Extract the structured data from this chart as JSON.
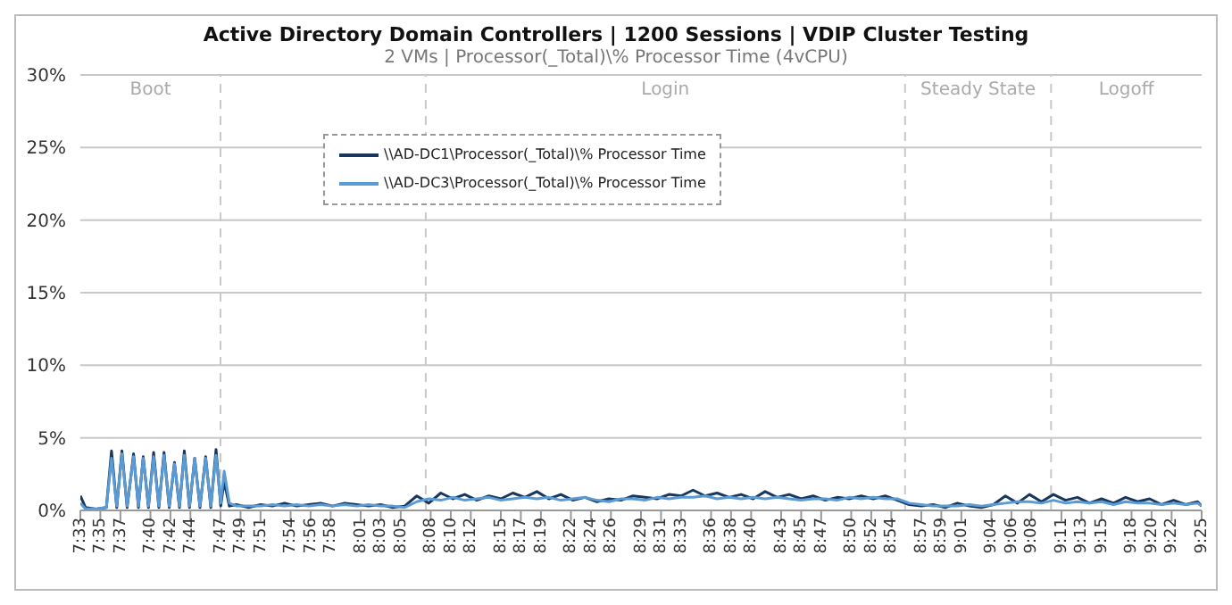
{
  "chart_data": {
    "type": "line",
    "title": "Active Directory Domain Controllers | 1200 Sessions | VDIP Cluster Testing",
    "subtitle": "2 VMs | Processor(_Total)\\% Processor Time (4vCPU)",
    "x": [
      7.55,
      7.5587,
      7.576,
      7.5933,
      7.6019,
      7.6106,
      7.6192,
      7.6279,
      7.6386,
      7.6467,
      7.6547,
      7.6634,
      7.672,
      7.6807,
      7.6893,
      7.698,
      7.7067,
      7.715,
      7.7231,
      7.7317,
      7.7404,
      7.7491,
      7.7586,
      7.7672,
      7.7759,
      7.7837,
      7.7894,
      7.7981,
      7.81,
      7.83,
      7.85,
      7.87,
      7.89,
      7.91,
      7.93,
      7.95,
      7.97,
      7.99,
      8.01,
      8.03,
      8.05,
      8.07,
      8.09,
      8.11,
      8.13,
      8.15,
      8.17,
      8.19,
      8.21,
      8.23,
      8.25,
      8.27,
      8.29,
      8.31,
      8.33,
      8.35,
      8.37,
      8.39,
      8.41,
      8.43,
      8.45,
      8.47,
      8.49,
      8.51,
      8.53,
      8.55,
      8.57,
      8.59,
      8.61,
      8.63,
      8.65,
      8.67,
      8.69,
      8.71,
      8.73,
      8.75,
      8.77,
      8.79,
      8.81,
      8.83,
      8.85,
      8.87,
      8.89,
      8.91,
      8.93,
      8.95,
      8.97,
      8.99,
      9.01,
      9.03,
      9.05,
      9.07,
      9.09,
      9.11,
      9.13,
      9.15,
      9.17,
      9.19,
      9.21,
      9.23,
      9.25,
      9.27,
      9.29,
      9.31,
      9.33,
      9.35,
      9.37,
      9.39,
      9.41,
      9.4167
    ],
    "series": [
      {
        "name": "\\\\AD-DC1\\Processor(_Total)\\% Processor Time",
        "color": "#17375e",
        "values": [
          1.0,
          0.2,
          0.1,
          0.2,
          4.1,
          0.2,
          4.1,
          0.2,
          3.9,
          0.2,
          3.7,
          0.2,
          4.0,
          0.2,
          4.0,
          0.2,
          3.3,
          0.2,
          4.1,
          0.2,
          3.6,
          0.2,
          3.7,
          0.2,
          4.2,
          0.3,
          2.0,
          0.3,
          0.4,
          0.2,
          0.4,
          0.3,
          0.5,
          0.3,
          0.4,
          0.5,
          0.3,
          0.5,
          0.4,
          0.3,
          0.4,
          0.2,
          0.3,
          1.0,
          0.5,
          1.2,
          0.8,
          1.1,
          0.7,
          1.0,
          0.8,
          1.2,
          0.9,
          1.3,
          0.8,
          1.1,
          0.7,
          0.9,
          0.6,
          0.8,
          0.7,
          1.0,
          0.9,
          0.8,
          1.1,
          1.0,
          1.4,
          1.0,
          1.2,
          0.9,
          1.1,
          0.8,
          1.3,
          0.9,
          1.1,
          0.8,
          1.0,
          0.7,
          0.9,
          0.8,
          1.0,
          0.8,
          1.0,
          0.7,
          0.4,
          0.3,
          0.4,
          0.2,
          0.5,
          0.3,
          0.2,
          0.4,
          1.0,
          0.5,
          1.1,
          0.6,
          1.1,
          0.7,
          0.9,
          0.5,
          0.8,
          0.5,
          0.9,
          0.6,
          0.8,
          0.4,
          0.7,
          0.4,
          0.6,
          0.3
        ]
      },
      {
        "name": "\\\\AD-DC3\\Processor(_Total)\\% Processor Time",
        "color": "#5b9bd5",
        "values": [
          0.5,
          0.1,
          0.1,
          0.2,
          3.6,
          0.3,
          3.9,
          0.3,
          3.7,
          0.3,
          3.6,
          0.3,
          3.7,
          0.3,
          3.8,
          0.3,
          3.2,
          0.3,
          3.8,
          0.3,
          3.6,
          0.3,
          3.6,
          0.3,
          3.8,
          0.5,
          2.7,
          0.5,
          0.3,
          0.3,
          0.3,
          0.4,
          0.3,
          0.4,
          0.3,
          0.4,
          0.3,
          0.4,
          0.3,
          0.4,
          0.3,
          0.3,
          0.2,
          0.6,
          0.8,
          0.7,
          0.9,
          0.7,
          0.8,
          0.9,
          0.7,
          0.8,
          0.9,
          0.8,
          0.9,
          0.7,
          0.8,
          0.9,
          0.7,
          0.6,
          0.8,
          0.8,
          0.7,
          0.9,
          0.8,
          0.9,
          0.9,
          1.0,
          0.8,
          0.9,
          0.8,
          0.9,
          0.8,
          0.9,
          0.8,
          0.7,
          0.8,
          0.8,
          0.7,
          0.9,
          0.8,
          0.9,
          0.8,
          0.8,
          0.5,
          0.4,
          0.3,
          0.3,
          0.3,
          0.4,
          0.3,
          0.4,
          0.5,
          0.6,
          0.6,
          0.5,
          0.7,
          0.5,
          0.6,
          0.5,
          0.6,
          0.4,
          0.6,
          0.5,
          0.5,
          0.4,
          0.5,
          0.4,
          0.5,
          0.3
        ]
      }
    ],
    "xlim": [
      7.55,
      9.4167
    ],
    "xticks": [
      {
        "value": 7.55,
        "label": "7:33"
      },
      {
        "value": 7.5833,
        "label": "7:35"
      },
      {
        "value": 7.6167,
        "label": "7:37"
      },
      {
        "value": 7.6667,
        "label": "7:40"
      },
      {
        "value": 7.7,
        "label": "7:42"
      },
      {
        "value": 7.7333,
        "label": "7:44"
      },
      {
        "value": 7.7833,
        "label": "7:47"
      },
      {
        "value": 7.8167,
        "label": "7:49"
      },
      {
        "value": 7.85,
        "label": "7:51"
      },
      {
        "value": 7.9,
        "label": "7:54"
      },
      {
        "value": 7.9333,
        "label": "7:56"
      },
      {
        "value": 7.9667,
        "label": "7:58"
      },
      {
        "value": 8.0167,
        "label": "8:01"
      },
      {
        "value": 8.05,
        "label": "8:03"
      },
      {
        "value": 8.0833,
        "label": "8:05"
      },
      {
        "value": 8.1333,
        "label": "8:08"
      },
      {
        "value": 8.1667,
        "label": "8:10"
      },
      {
        "value": 8.2,
        "label": "8:12"
      },
      {
        "value": 8.25,
        "label": "8:15"
      },
      {
        "value": 8.2833,
        "label": "8:17"
      },
      {
        "value": 8.3167,
        "label": "8:19"
      },
      {
        "value": 8.3667,
        "label": "8:22"
      },
      {
        "value": 8.4,
        "label": "8:24"
      },
      {
        "value": 8.4333,
        "label": "8:26"
      },
      {
        "value": 8.4833,
        "label": "8:29"
      },
      {
        "value": 8.5167,
        "label": "8:31"
      },
      {
        "value": 8.55,
        "label": "8:33"
      },
      {
        "value": 8.6,
        "label": "8:36"
      },
      {
        "value": 8.6333,
        "label": "8:38"
      },
      {
        "value": 8.6667,
        "label": "8:40"
      },
      {
        "value": 8.7167,
        "label": "8:43"
      },
      {
        "value": 8.75,
        "label": "8:45"
      },
      {
        "value": 8.7833,
        "label": "8:47"
      },
      {
        "value": 8.8333,
        "label": "8:50"
      },
      {
        "value": 8.8667,
        "label": "8:52"
      },
      {
        "value": 8.9,
        "label": "8:54"
      },
      {
        "value": 8.95,
        "label": "8:57"
      },
      {
        "value": 8.9833,
        "label": "8:59"
      },
      {
        "value": 9.0167,
        "label": "9:01"
      },
      {
        "value": 9.0667,
        "label": "9:04"
      },
      {
        "value": 9.1,
        "label": "9:06"
      },
      {
        "value": 9.1333,
        "label": "9:08"
      },
      {
        "value": 9.1833,
        "label": "9:11"
      },
      {
        "value": 9.2167,
        "label": "9:13"
      },
      {
        "value": 9.25,
        "label": "9:15"
      },
      {
        "value": 9.3,
        "label": "9:18"
      },
      {
        "value": 9.3333,
        "label": "9:20"
      },
      {
        "value": 9.3667,
        "label": "9:22"
      },
      {
        "value": 9.4167,
        "label": "9:25"
      }
    ],
    "ylim": [
      0,
      30
    ],
    "yticks": [
      {
        "value": 0,
        "label": "0%"
      },
      {
        "value": 5,
        "label": "5%"
      },
      {
        "value": 10,
        "label": "10%"
      },
      {
        "value": 15,
        "label": "15%"
      },
      {
        "value": 20,
        "label": "20%"
      },
      {
        "value": 25,
        "label": "25%"
      },
      {
        "value": 30,
        "label": "30%"
      }
    ],
    "ref_lines": [
      {
        "axis": "x",
        "value": 7.7833,
        "color": "#c8c8c8",
        "line_style": "dashed"
      },
      {
        "axis": "x",
        "value": 8.125,
        "color": "#c8c8c8",
        "line_style": "dashed"
      },
      {
        "axis": "x",
        "value": 8.923,
        "color": "#c8c8c8",
        "line_style": "dashed"
      },
      {
        "axis": "x",
        "value": 9.166,
        "color": "#c8c8c8",
        "line_style": "dashed"
      }
    ],
    "annotations": [
      "Boot",
      "Login",
      "Steady State",
      "Logoff"
    ],
    "grid": "y",
    "legend": "top left",
    "marker": "none",
    "line_style": "solid"
  }
}
